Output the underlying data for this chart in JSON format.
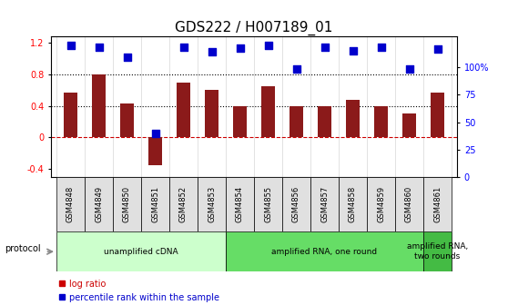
{
  "title": "GDS222 / H007189_01",
  "samples": [
    "GSM4848",
    "GSM4849",
    "GSM4850",
    "GSM4851",
    "GSM4852",
    "GSM4853",
    "GSM4854",
    "GSM4855",
    "GSM4856",
    "GSM4857",
    "GSM4858",
    "GSM4859",
    "GSM4860",
    "GSM4861"
  ],
  "log_ratio": [
    0.57,
    0.8,
    0.43,
    -0.35,
    0.7,
    0.6,
    0.4,
    0.65,
    0.4,
    0.4,
    0.48,
    0.4,
    0.3,
    0.57
  ],
  "percentile": [
    1.17,
    1.14,
    1.02,
    0.05,
    1.14,
    1.09,
    1.13,
    1.17,
    0.87,
    1.14,
    1.1,
    1.14,
    0.87,
    1.12
  ],
  "bar_color": "#8B1A1A",
  "dot_color": "#0000CC",
  "ylim_left": [
    -0.5,
    1.28
  ],
  "ylim_right": [
    0,
    128
  ],
  "yticks_left": [
    -0.4,
    0.0,
    0.4,
    0.8,
    1.2
  ],
  "yticks_right": [
    0,
    25,
    50,
    75,
    100
  ],
  "ytick_labels_left": [
    "-0.4",
    "0",
    "0.4",
    "0.8",
    "1.2"
  ],
  "ytick_labels_right": [
    "0",
    "25",
    "50",
    "75",
    "100%"
  ],
  "hlines": [
    0.4,
    0.8
  ],
  "hline_zero": 0.0,
  "protocol_groups": [
    {
      "label": "unamplified cDNA",
      "start": 0,
      "end": 5,
      "color": "#CCFFCC"
    },
    {
      "label": "amplified RNA, one round",
      "start": 6,
      "end": 12,
      "color": "#66DD66"
    },
    {
      "label": "amplified RNA,\ntwo rounds",
      "start": 13,
      "end": 13,
      "color": "#44BB44"
    }
  ],
  "legend_items": [
    {
      "color": "#CC0000",
      "label": "log ratio"
    },
    {
      "color": "#0000CC",
      "label": "percentile rank within the sample"
    }
  ],
  "protocol_label": "protocol",
  "title_fontsize": 11,
  "tick_fontsize": 7,
  "bar_width": 0.5,
  "dot_size": 35,
  "background_color": "#FFFFFF"
}
